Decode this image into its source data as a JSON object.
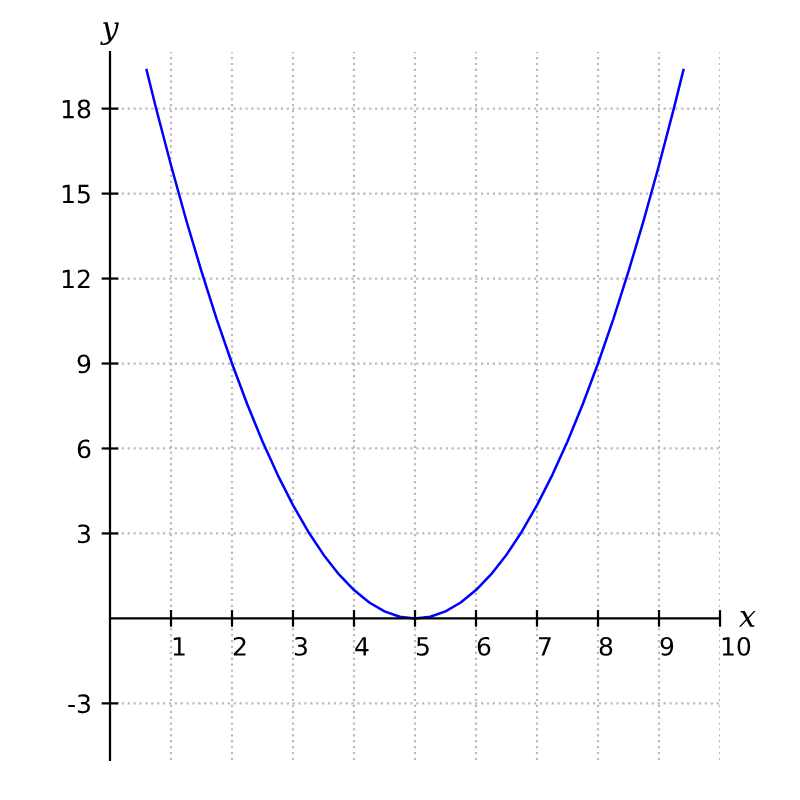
{
  "chart_data": {
    "type": "line",
    "xlabel": "x",
    "ylabel": "y",
    "x": [
      0.6,
      0.75,
      1,
      1.25,
      1.5,
      1.75,
      2,
      2.25,
      2.5,
      2.75,
      3,
      3.25,
      3.5,
      3.75,
      4,
      4.25,
      4.5,
      4.75,
      5,
      5.25,
      5.5,
      5.75,
      6,
      6.25,
      6.5,
      6.75,
      7,
      7.25,
      7.5,
      7.75,
      8,
      8.25,
      8.5,
      8.75,
      9,
      9.25,
      9.4
    ],
    "series": [
      {
        "color": "#0000ff",
        "values": [
          19.36,
          18.06,
          16,
          14.06,
          12.25,
          10.56,
          9,
          7.56,
          6.25,
          5.06,
          4,
          3.06,
          2.25,
          1.56,
          1,
          0.56,
          0.25,
          0.06,
          0,
          0.06,
          0.25,
          0.56,
          1,
          1.56,
          2.25,
          3.06,
          4,
          5.06,
          6.25,
          7.56,
          9,
          10.56,
          12.25,
          14.06,
          16,
          18.06,
          19.36
        ]
      }
    ],
    "xlim": [
      0,
      10
    ],
    "ylim": [
      -5,
      20
    ],
    "xticks": [
      1,
      2,
      3,
      4,
      5,
      6,
      7,
      8,
      9,
      10
    ],
    "yticks": [
      -3,
      3,
      6,
      9,
      12,
      15,
      18
    ],
    "grid": true,
    "line_style": "solid",
    "marker": "none"
  }
}
